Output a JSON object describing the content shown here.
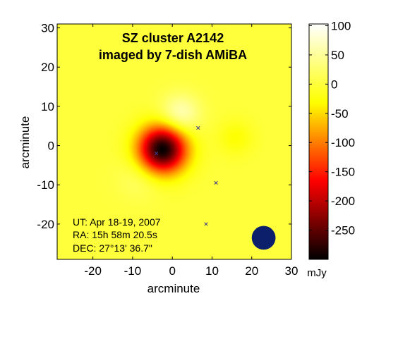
{
  "chart_data": {
    "type": "heatmap",
    "title_lines": [
      "SZ cluster A2142",
      "imaged by 7-dish AMiBA"
    ],
    "xlabel": "arcminute",
    "ylabel": "arcminute",
    "xlim": [
      -29,
      30
    ],
    "ylim": [
      -29,
      31
    ],
    "x_ticks": [
      -20,
      -10,
      0,
      10,
      20,
      30
    ],
    "y_ticks": [
      -20,
      -10,
      0,
      10,
      20,
      30
    ],
    "colorbar": {
      "range": [
        -300,
        103
      ],
      "ticks": [
        100,
        50,
        0,
        -50,
        -100,
        -150,
        -200,
        -250
      ],
      "unit": "mJy",
      "colormap": "hot",
      "colors": [
        "#000000",
        "#ff0000",
        "#ffff00",
        "#ffffff"
      ]
    },
    "background_value": 0,
    "features": [
      {
        "kind": "decrement",
        "x": -2.5,
        "y": -1,
        "peak_mJy": -300,
        "sigma_arcmin": 4.2
      },
      {
        "kind": "positive_lobe",
        "x": 2,
        "y": 8,
        "peak_mJy": 70,
        "sigma_arcmin": 3.5
      },
      {
        "kind": "positive_lobe",
        "x": -8,
        "y": -8,
        "peak_mJy": 25,
        "sigma_arcmin": 4
      },
      {
        "kind": "negative_lobe",
        "x": 16,
        "y": 2,
        "peak_mJy": -30,
        "sigma_arcmin": 3
      }
    ],
    "point_sources": [
      {
        "x": 6.5,
        "y": 4.5
      },
      {
        "x": 11,
        "y": -9.5
      },
      {
        "x": 8.5,
        "y": -20
      },
      {
        "x": -4,
        "y": -2
      }
    ],
    "beam": {
      "x": 23,
      "y": -23.5,
      "diameter_arcmin": 6,
      "color": "#0b1f6b"
    },
    "info_lines": [
      "UT: Apr 18-19, 2007",
      "RA: 15h 58m 20.5s",
      "DEC: 27°13' 36.7\""
    ]
  }
}
